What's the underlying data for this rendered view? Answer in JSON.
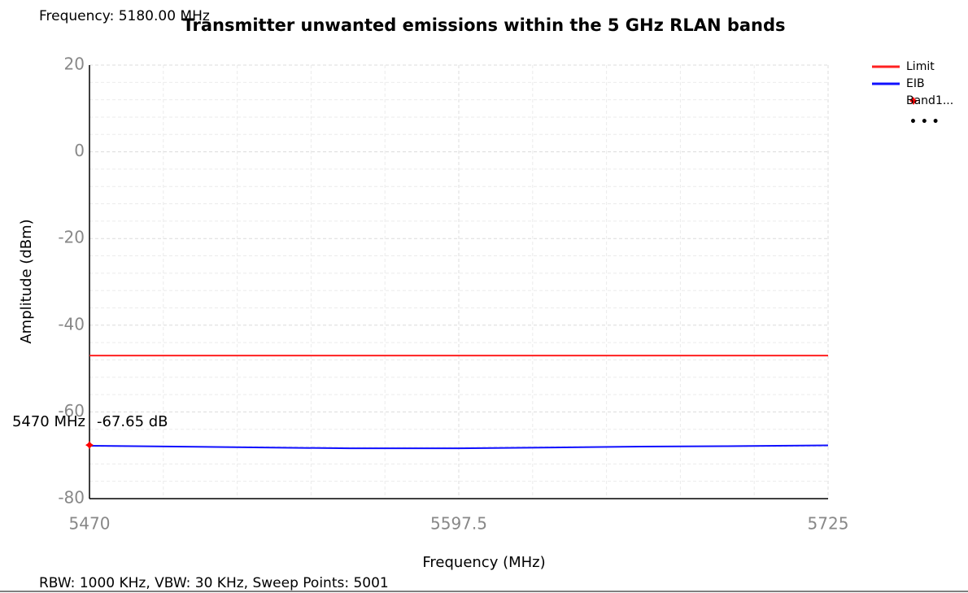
{
  "chart_data": {
    "type": "line",
    "title": "Transmitter unwanted emissions within the 5 GHz RLAN bands",
    "header_text": "Frequency: 5180.00 MHz",
    "footer_text": "RBW: 1000 KHz,  VBW: 30 KHz,  Sweep Points: 5001",
    "xlabel": "Frequency (MHz)",
    "ylabel": "Amplitude (dBm)",
    "xlim": [
      5470,
      5725
    ],
    "xticks": [
      5470,
      5597.5,
      5725
    ],
    "xminorticks": [
      5495.5,
      5521,
      5546.5,
      5572,
      5623,
      5648.5,
      5674,
      5699.5
    ],
    "ylim": [
      -80,
      20
    ],
    "yticks": [
      -80,
      -60,
      -40,
      -20,
      0,
      20
    ],
    "yminorticks": [
      -76,
      -72,
      -68,
      -64,
      -56,
      -52,
      -48,
      -44,
      -36,
      -32,
      -28,
      -24,
      -16,
      -12,
      -8,
      -4,
      4,
      8,
      12,
      16
    ],
    "grid": true,
    "legend_more": "• • •",
    "series": [
      {
        "name": "Limit",
        "color": "#ff2020",
        "x": [
          5470,
          5725
        ],
        "values": [
          -47,
          -47
        ]
      },
      {
        "name": "EIB",
        "color": "#1010ff",
        "x": [
          5470,
          5500,
          5530,
          5560,
          5597.5,
          5630,
          5660,
          5690,
          5725
        ],
        "values": [
          -67.8,
          -68.0,
          -68.2,
          -68.4,
          -68.4,
          -68.2,
          -68.0,
          -67.9,
          -67.7
        ]
      },
      {
        "name": "Band1...",
        "color": "#ff0000",
        "marker": true,
        "x": [
          5470
        ],
        "values": [
          -67.65
        ],
        "x_labels": [
          "5470 MHz"
        ],
        "value_labels": [
          "-67.65 dB"
        ]
      }
    ]
  }
}
